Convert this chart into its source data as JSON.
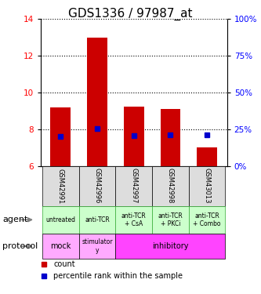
{
  "title": "GDS1336 / 97987_at",
  "samples": [
    "GSM42991",
    "GSM42996",
    "GSM42997",
    "GSM42998",
    "GSM43013"
  ],
  "bar_bottoms": [
    6.0,
    6.0,
    6.0,
    6.0,
    6.0
  ],
  "bar_tops": [
    9.2,
    13.0,
    9.25,
    9.1,
    7.0
  ],
  "percentile_values": [
    7.6,
    8.05,
    7.65,
    7.7,
    7.7
  ],
  "ylim_left": [
    6,
    14
  ],
  "ylim_right": [
    0,
    100
  ],
  "yticks_left": [
    6,
    8,
    10,
    12,
    14
  ],
  "yticks_right": [
    0,
    25,
    50,
    75,
    100
  ],
  "ytick_labels_right": [
    "0%",
    "25%",
    "50%",
    "75%",
    "100%"
  ],
  "bar_color": "#cc0000",
  "percentile_color": "#0000cc",
  "agent_labels": [
    "untreated",
    "anti-TCR",
    "anti-TCR\n+ CsA",
    "anti-TCR\n+ PKCi",
    "anti-TCR\n+ Combo"
  ],
  "agent_color": "#ccffcc",
  "agent_border_color": "#33aa33",
  "protocol_mock_color": "#ffaaff",
  "protocol_stim_color": "#ffaaff",
  "protocol_inhib_color": "#ff44ff",
  "sample_bg_color": "#dddddd",
  "legend_count_color": "#cc0000",
  "legend_percentile_color": "#0000cc",
  "title_fontsize": 11,
  "tick_fontsize": 7.5,
  "sample_fontsize": 6,
  "agent_fontsize": 5.5,
  "protocol_fontsize": 7,
  "legend_fontsize": 7,
  "label_fontsize": 8
}
